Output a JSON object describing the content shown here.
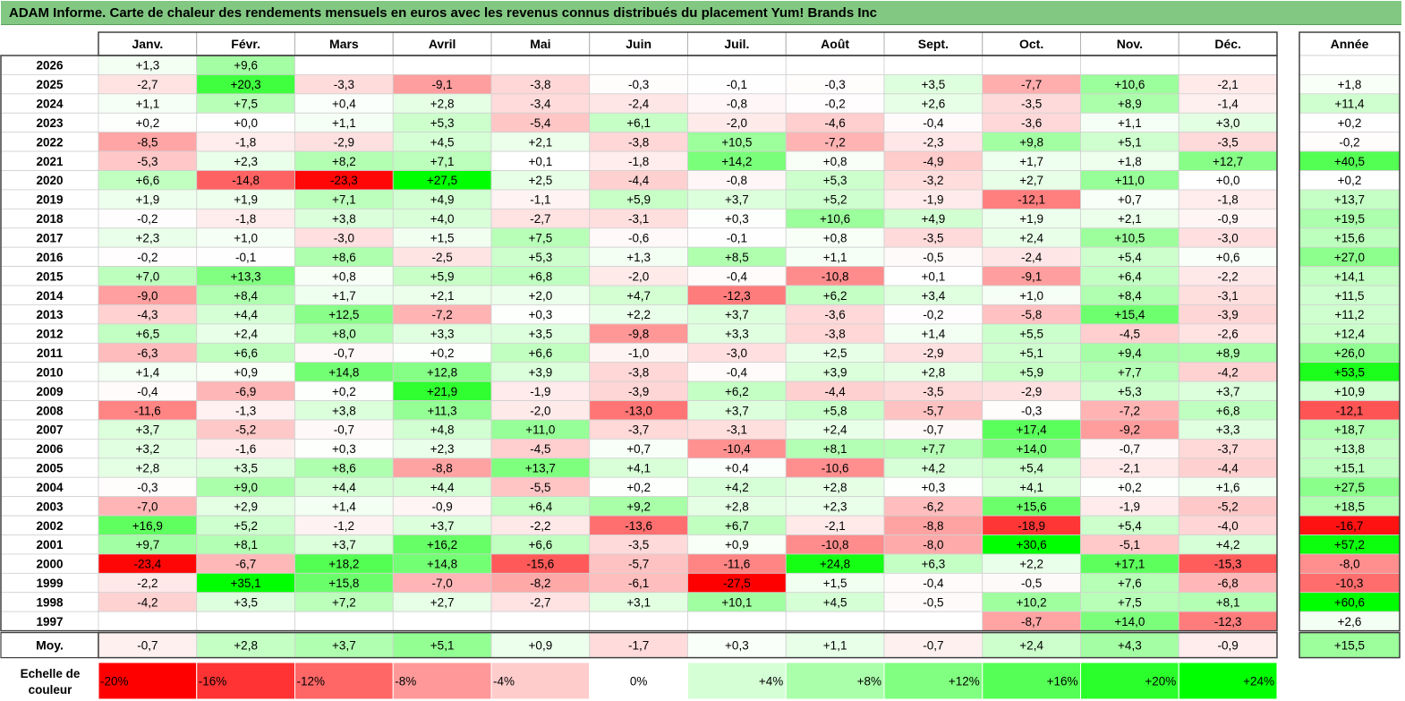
{
  "title": "ADAM Informe. Carte de chaleur des rendements mensuels en euros avec les revenus connus distribués du placement Yum! Brands Inc",
  "colors": {
    "title_bg": "#82c882",
    "negative_max": "#ff0000",
    "neutral": "#ffffff",
    "positive_max": "#00ff00"
  },
  "chart_data": {
    "type": "heatmap",
    "months": [
      "Janv.",
      "Févr.",
      "Mars",
      "Avril",
      "Mai",
      "Juin",
      "Juil.",
      "Août",
      "Sept.",
      "Oct.",
      "Nov.",
      "Déc."
    ],
    "year_column_label": "Année",
    "average_label": "Moy.",
    "rows": [
      {
        "year": "2026",
        "values": [
          "+1,3",
          "+9,6",
          "",
          "",
          "",
          "",
          "",
          "",
          "",
          "",
          "",
          ""
        ],
        "annual": ""
      },
      {
        "year": "2025",
        "values": [
          "-2,7",
          "+20,3",
          "-3,3",
          "-9,1",
          "-3,8",
          "-0,3",
          "-0,1",
          "-0,3",
          "+3,5",
          "-7,7",
          "+10,6",
          "-2,1"
        ],
        "annual": "+1,8"
      },
      {
        "year": "2024",
        "values": [
          "+1,1",
          "+7,5",
          "+0,4",
          "+2,8",
          "-3,4",
          "-2,4",
          "-0,8",
          "-0,2",
          "+2,6",
          "-3,5",
          "+8,9",
          "-1,4"
        ],
        "annual": "+11,4"
      },
      {
        "year": "2023",
        "values": [
          "+0,2",
          "+0,0",
          "+1,1",
          "+5,3",
          "-5,4",
          "+6,1",
          "-2,0",
          "-4,6",
          "-0,4",
          "-3,6",
          "+1,1",
          "+3,0"
        ],
        "annual": "+0,2"
      },
      {
        "year": "2022",
        "values": [
          "-8,5",
          "-1,8",
          "-2,9",
          "+4,5",
          "+2,1",
          "-3,8",
          "+10,5",
          "-7,2",
          "-2,3",
          "+9,8",
          "+5,1",
          "-3,5"
        ],
        "annual": "-0,2"
      },
      {
        "year": "2021",
        "values": [
          "-5,3",
          "+2,3",
          "+8,2",
          "+7,1",
          "+0,1",
          "-1,8",
          "+14,2",
          "+0,8",
          "-4,9",
          "+1,7",
          "+1,8",
          "+12,7"
        ],
        "annual": "+40,5"
      },
      {
        "year": "2020",
        "values": [
          "+6,6",
          "-14,8",
          "-23,3",
          "+27,5",
          "+2,5",
          "-4,4",
          "-0,8",
          "+5,3",
          "-3,2",
          "+2,7",
          "+11,0",
          "+0,0"
        ],
        "annual": "+0,2"
      },
      {
        "year": "2019",
        "values": [
          "+1,9",
          "+1,9",
          "+7,1",
          "+4,9",
          "-1,1",
          "+5,9",
          "+3,7",
          "+5,2",
          "-1,9",
          "-12,1",
          "+0,7",
          "-1,8"
        ],
        "annual": "+13,7"
      },
      {
        "year": "2018",
        "values": [
          "-0,2",
          "-1,8",
          "+3,8",
          "+4,0",
          "-2,7",
          "-3,1",
          "+0,3",
          "+10,6",
          "+4,9",
          "+1,9",
          "+2,1",
          "-0,9"
        ],
        "annual": "+19,5"
      },
      {
        "year": "2017",
        "values": [
          "+2,3",
          "+1,0",
          "-3,0",
          "+1,5",
          "+7,5",
          "-0,6",
          "-0,1",
          "+0,8",
          "-3,5",
          "+2,4",
          "+10,5",
          "-3,0"
        ],
        "annual": "+15,6"
      },
      {
        "year": "2016",
        "values": [
          "-0,2",
          "-0,1",
          "+8,6",
          "-2,5",
          "+5,3",
          "+1,3",
          "+8,5",
          "+1,1",
          "-0,5",
          "-2,4",
          "+5,4",
          "+0,6"
        ],
        "annual": "+27,0"
      },
      {
        "year": "2015",
        "values": [
          "+7,0",
          "+13,3",
          "+0,8",
          "+5,9",
          "+6,8",
          "-2,0",
          "-0,4",
          "-10,8",
          "+0,1",
          "-9,1",
          "+6,4",
          "-2,2"
        ],
        "annual": "+14,1"
      },
      {
        "year": "2014",
        "values": [
          "-9,0",
          "+8,4",
          "+1,7",
          "+2,1",
          "+2,0",
          "+4,7",
          "-12,3",
          "+6,2",
          "+3,4",
          "+1,0",
          "+8,4",
          "-3,1"
        ],
        "annual": "+11,5"
      },
      {
        "year": "2013",
        "values": [
          "-4,3",
          "+4,4",
          "+12,5",
          "-7,2",
          "+0,3",
          "+2,2",
          "+3,7",
          "-3,6",
          "-0,2",
          "-5,8",
          "+15,4",
          "-3,9"
        ],
        "annual": "+11,2"
      },
      {
        "year": "2012",
        "values": [
          "+6,5",
          "+2,4",
          "+8,0",
          "+3,3",
          "+3,5",
          "-9,8",
          "+3,3",
          "-3,8",
          "+1,4",
          "+5,5",
          "-4,5",
          "-2,6"
        ],
        "annual": "+12,4"
      },
      {
        "year": "2011",
        "values": [
          "-6,3",
          "+6,6",
          "-0,7",
          "+0,2",
          "+6,6",
          "-1,0",
          "-3,0",
          "+2,5",
          "-2,9",
          "+5,1",
          "+9,4",
          "+8,9"
        ],
        "annual": "+26,0"
      },
      {
        "year": "2010",
        "values": [
          "+1,4",
          "+0,9",
          "+14,8",
          "+12,8",
          "+3,9",
          "-3,8",
          "-0,4",
          "+3,9",
          "+2,8",
          "+5,9",
          "+7,7",
          "-4,2"
        ],
        "annual": "+53,5"
      },
      {
        "year": "2009",
        "values": [
          "-0,4",
          "-6,9",
          "+0,2",
          "+21,9",
          "-1,9",
          "-3,9",
          "+6,2",
          "-4,4",
          "-3,5",
          "-2,9",
          "+5,3",
          "+3,7"
        ],
        "annual": "+10,9"
      },
      {
        "year": "2008",
        "values": [
          "-11,6",
          "-1,3",
          "+3,8",
          "+11,3",
          "-2,0",
          "-13,0",
          "+3,7",
          "+5,8",
          "-5,7",
          "-0,3",
          "-7,2",
          "+6,8"
        ],
        "annual": "-12,1"
      },
      {
        "year": "2007",
        "values": [
          "+3,7",
          "-5,2",
          "-0,7",
          "+4,8",
          "+11,0",
          "-3,7",
          "-3,1",
          "+2,4",
          "-0,7",
          "+17,4",
          "-9,2",
          "+3,3"
        ],
        "annual": "+18,7"
      },
      {
        "year": "2006",
        "values": [
          "+3,2",
          "-1,6",
          "+0,3",
          "+2,3",
          "-4,5",
          "+0,7",
          "-10,4",
          "+8,1",
          "+7,7",
          "+14,0",
          "-0,7",
          "-3,7"
        ],
        "annual": "+13,8"
      },
      {
        "year": "2005",
        "values": [
          "+2,8",
          "+3,5",
          "+8,6",
          "-8,8",
          "+13,7",
          "+4,1",
          "+0,4",
          "-10,6",
          "+4,2",
          "+5,4",
          "-2,1",
          "-4,4"
        ],
        "annual": "+15,1"
      },
      {
        "year": "2004",
        "values": [
          "-0,3",
          "+9,0",
          "+4,4",
          "+4,4",
          "-5,5",
          "+0,2",
          "+4,2",
          "+2,8",
          "+0,3",
          "+4,1",
          "+0,2",
          "+1,6"
        ],
        "annual": "+27,5"
      },
      {
        "year": "2003",
        "values": [
          "-7,0",
          "+2,9",
          "+1,4",
          "-0,9",
          "+6,4",
          "+9,2",
          "+2,8",
          "+2,3",
          "-6,2",
          "+15,6",
          "-1,9",
          "-5,2"
        ],
        "annual": "+18,5"
      },
      {
        "year": "2002",
        "values": [
          "+16,9",
          "+5,2",
          "-1,2",
          "+3,7",
          "-2,2",
          "-13,6",
          "+6,7",
          "-2,1",
          "-8,8",
          "-18,9",
          "+5,4",
          "-4,0"
        ],
        "annual": "-16,7"
      },
      {
        "year": "2001",
        "values": [
          "+9,7",
          "+8,1",
          "+3,7",
          "+16,2",
          "+6,6",
          "-3,5",
          "+0,9",
          "-10,8",
          "-8,0",
          "+30,6",
          "-5,1",
          "+4,2"
        ],
        "annual": "+57,2"
      },
      {
        "year": "2000",
        "values": [
          "-23,4",
          "-6,7",
          "+18,2",
          "+14,8",
          "-15,6",
          "-5,7",
          "-11,6",
          "+24,8",
          "+6,3",
          "+2,2",
          "+17,1",
          "-15,3"
        ],
        "annual": "-8,0"
      },
      {
        "year": "1999",
        "values": [
          "-2,2",
          "+35,1",
          "+15,8",
          "-7,0",
          "-8,2",
          "-6,1",
          "-27,5",
          "+1,5",
          "-0,4",
          "-0,5",
          "+7,6",
          "-6,8"
        ],
        "annual": "-10,3"
      },
      {
        "year": "1998",
        "values": [
          "-4,2",
          "+3,5",
          "+7,2",
          "+2,7",
          "-2,7",
          "+3,1",
          "+10,1",
          "+4,5",
          "-0,5",
          "+10,2",
          "+7,5",
          "+8,1"
        ],
        "annual": "+60,6"
      },
      {
        "year": "1997",
        "values": [
          "",
          "",
          "",
          "",
          "",
          "",
          "",
          "",
          "",
          "-8,7",
          "+14,0",
          "-12,3"
        ],
        "annual": "+2,6"
      }
    ],
    "average": {
      "values": [
        "-0,7",
        "+2,8",
        "+3,7",
        "+5,1",
        "+0,9",
        "-1,7",
        "+0,3",
        "+1,1",
        "-0,7",
        "+2,4",
        "+4,3",
        "-0,9"
      ],
      "annual": "+15,5"
    },
    "legend": {
      "label_line1": "Echelle de",
      "label_line2": "couleur",
      "stops": [
        "-20%",
        "-16%",
        "-12%",
        "-8%",
        "-4%",
        "0%",
        "+4%",
        "+8%",
        "+12%",
        "+16%",
        "+20%",
        "+24%"
      ]
    }
  }
}
